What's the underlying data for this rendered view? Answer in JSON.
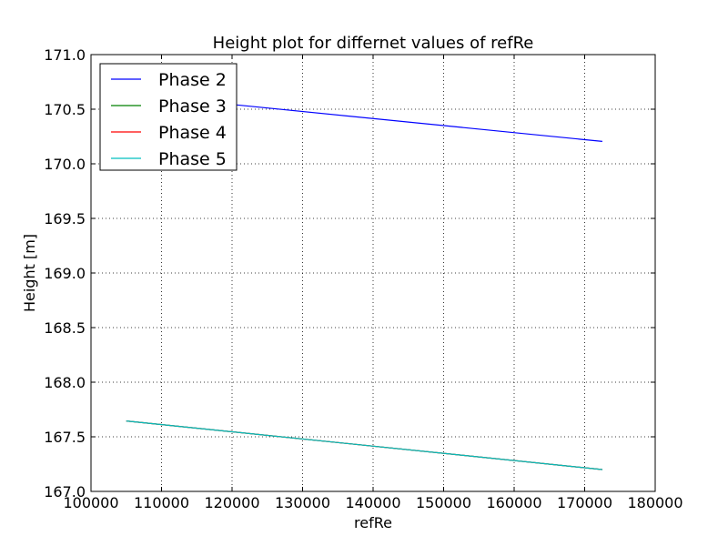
{
  "chart_data": {
    "type": "line",
    "title": "Height plot for differnet values of refRe",
    "xlabel": "refRe",
    "ylabel": "Height [m]",
    "xlim": [
      100000,
      180000
    ],
    "ylim": [
      167.0,
      171.0
    ],
    "xticks": [
      100000,
      110000,
      120000,
      130000,
      140000,
      150000,
      160000,
      170000,
      180000
    ],
    "xtick_labels": [
      "100000",
      "110000",
      "120000",
      "130000",
      "140000",
      "150000",
      "160000",
      "170000",
      "180000"
    ],
    "yticks": [
      167.0,
      167.5,
      168.0,
      168.5,
      169.0,
      169.5,
      170.0,
      170.5,
      171.0
    ],
    "ytick_labels": [
      "167.0",
      "167.5",
      "168.0",
      "168.5",
      "169.0",
      "169.5",
      "170.0",
      "170.5",
      "171.0"
    ],
    "grid": true,
    "legend_position": "top-left",
    "series": [
      {
        "name": "Phase 2",
        "color": "#0000ff",
        "x": [
          105000,
          172500
        ],
        "y": [
          170.64,
          170.205
        ]
      },
      {
        "name": "Phase 3",
        "color": "#008000",
        "x": [
          105000,
          172500
        ],
        "y": [
          167.645,
          167.2
        ]
      },
      {
        "name": "Phase 4",
        "color": "#ff0000",
        "x": [
          105000,
          172500
        ],
        "y": [
          167.645,
          167.2
        ]
      },
      {
        "name": "Phase 5",
        "color": "#00bfbf",
        "x": [
          105000,
          172500
        ],
        "y": [
          167.645,
          167.2
        ]
      }
    ]
  }
}
